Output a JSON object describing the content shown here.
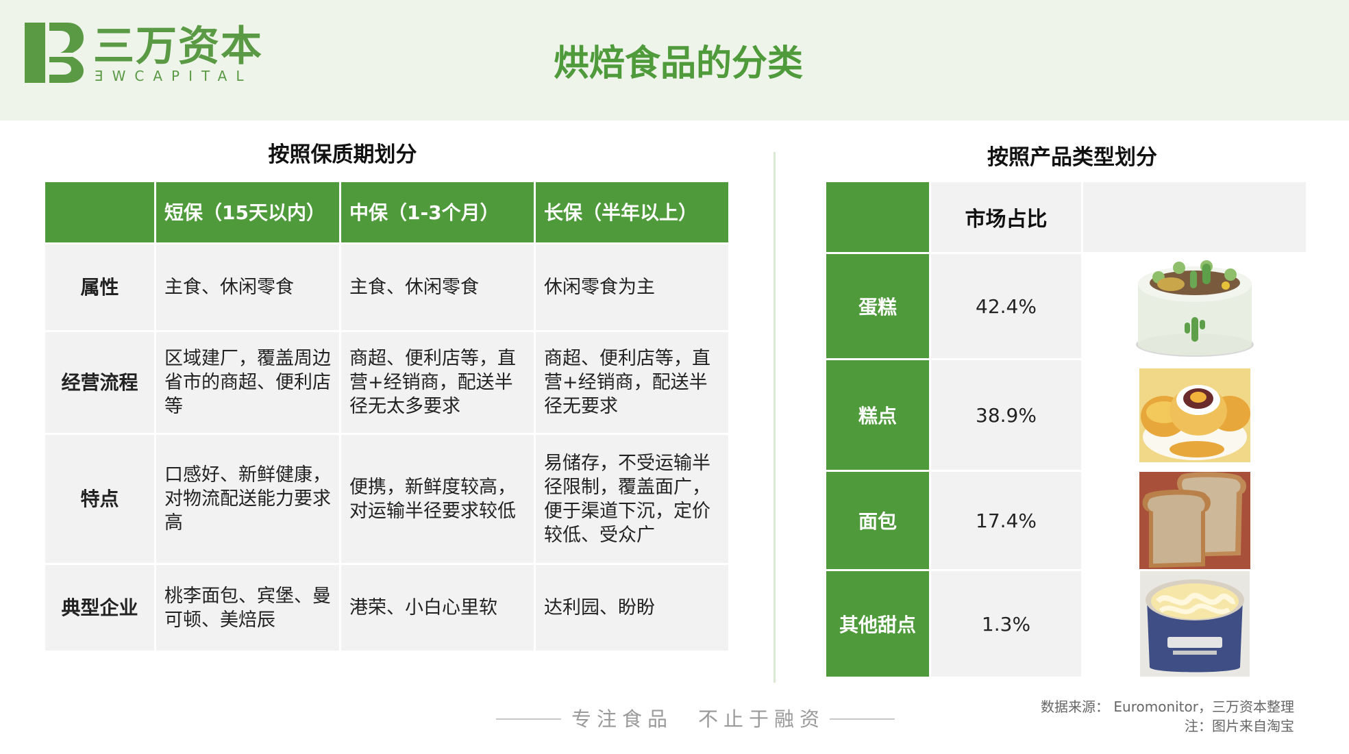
{
  "logo": {
    "name_cn": "三万资本",
    "name_en": "ƎWCAPITAL"
  },
  "page_title": "烘焙食品的分类",
  "left_section": {
    "title": "按照保质期划分",
    "headers": [
      "",
      "短保（15天以内）",
      "中保（1-3个月）",
      "长保（半年以上）"
    ],
    "rows": [
      {
        "label": "属性",
        "cells": [
          "主食、休闲零食",
          "主食、休闲零食",
          "休闲零食为主"
        ]
      },
      {
        "label": "经营流程",
        "cells": [
          "区域建厂，覆盖周边省市的商超、便利店等",
          "商超、便利店等，直营+经销商，配送半径无太多要求",
          "商超、便利店等，直营+经销商，配送半径无要求"
        ]
      },
      {
        "label": "特点",
        "cells": [
          "口感好、新鲜健康，对物流配送能力要求高",
          "便携，新鲜度较高，对运输半径要求较低",
          "易储存，不受运输半径限制，覆盖面广，便于渠道下沉，定价较低、受众广"
        ]
      },
      {
        "label": "典型企业",
        "cells": [
          "桃李面包、宾堡、曼可顿、美焙辰",
          "港荣、小白心里软",
          "达利园、盼盼"
        ]
      }
    ]
  },
  "right_section": {
    "title": "按照产品类型划分",
    "header": "市场占比",
    "rows": [
      {
        "label": "蛋糕",
        "share": "42.4%",
        "image": "cake-image"
      },
      {
        "label": "糕点",
        "share": "38.9%",
        "image": "pastry-image"
      },
      {
        "label": "面包",
        "share": "17.4%",
        "image": "bread-image"
      },
      {
        "label": "其他甜点",
        "share": "1.3%",
        "image": "dessert-image"
      }
    ]
  },
  "footer": {
    "slogan": "专注食品　不止于融资",
    "source": "数据来源： Euromonitor，三万资本整理",
    "note": "注：图片来自淘宝"
  },
  "colors": {
    "brand_green": "#4f9a3a",
    "header_bg": "#eef4ea",
    "cell_gray": "#f2f2f2"
  }
}
